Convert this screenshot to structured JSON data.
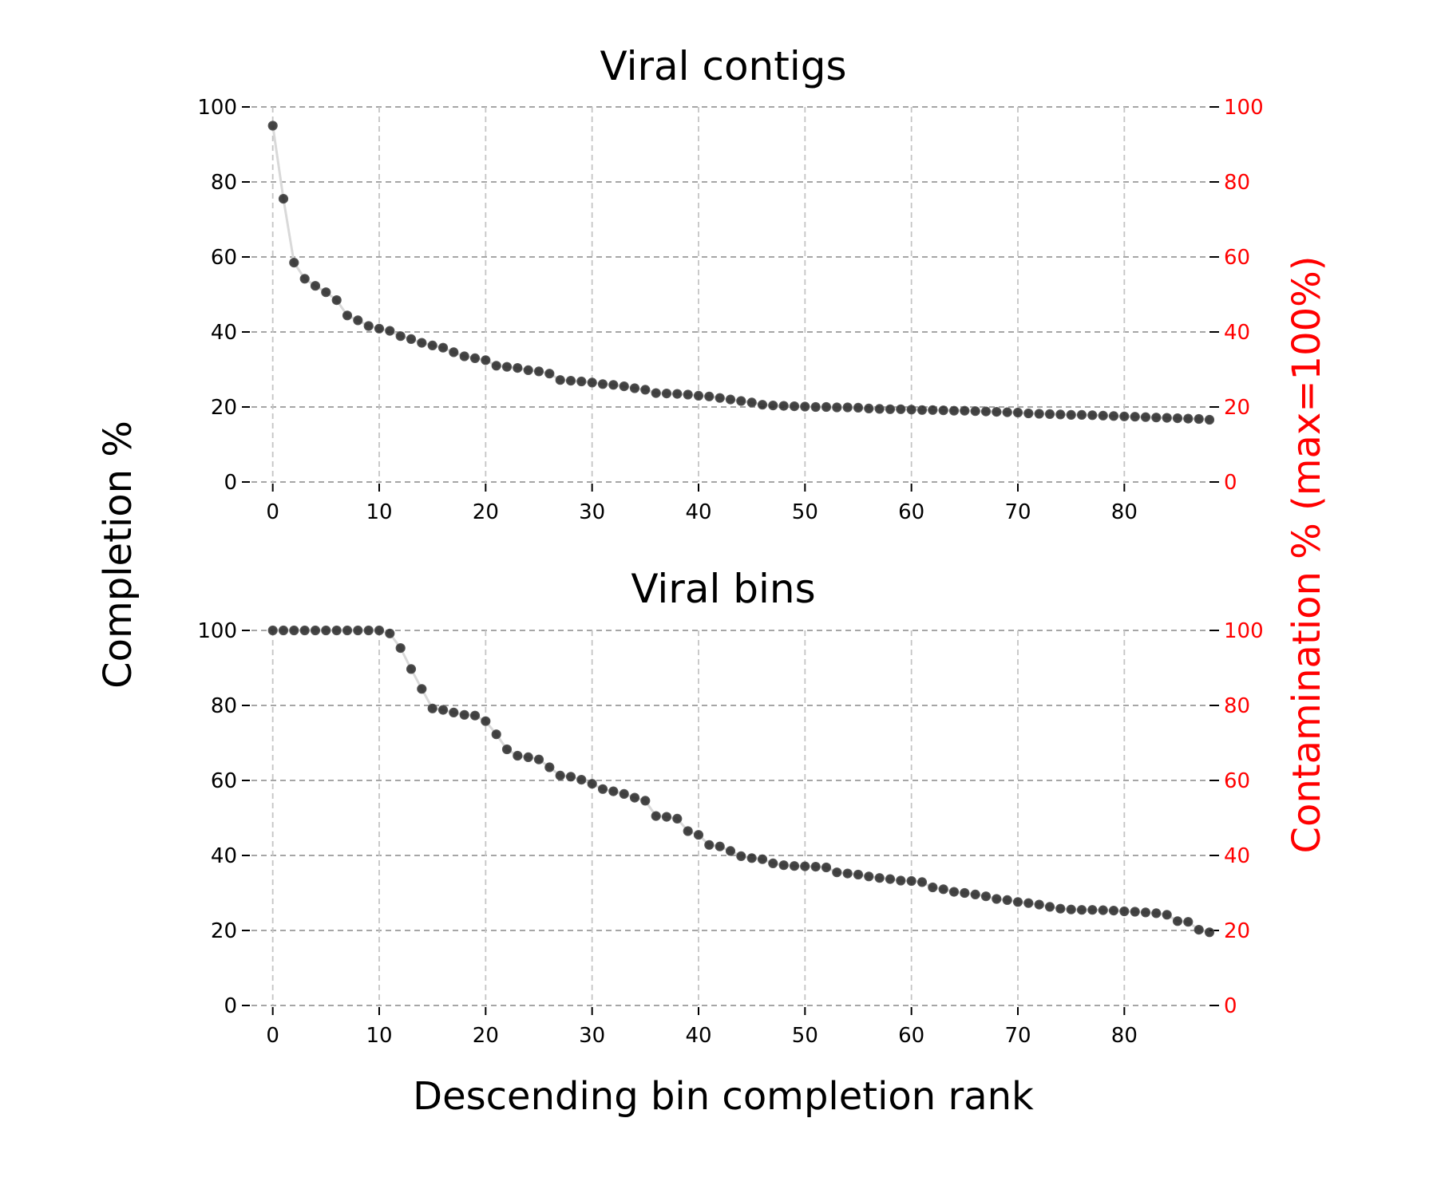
{
  "figure": {
    "ylabel_left": "Completion %",
    "ylabel_right": "Contamination % (max=100%)",
    "xlabel": "Descending bin completion rank",
    "right_axis_color": "#ff0000",
    "point_color": "#222222",
    "line_color": "#d9d9d9",
    "grid": true
  },
  "chart_data": [
    {
      "type": "line",
      "title": "Viral contigs",
      "xlim": [
        -2,
        88
      ],
      "ylim": [
        0,
        100
      ],
      "xticks": [
        "0",
        "10",
        "20",
        "30",
        "40",
        "50",
        "60",
        "70",
        "80"
      ],
      "yticks_left": [
        "0",
        "20",
        "40",
        "60",
        "80",
        "100"
      ],
      "yticks_right": [
        "0",
        "20",
        "40",
        "60",
        "80",
        "100"
      ],
      "series": [
        {
          "x_start": 0,
          "values": [
            95,
            75.5,
            58.5,
            54.2,
            52.3,
            50.6,
            48.5,
            44.4,
            43.1,
            41.6,
            40.9,
            40.3,
            38.9,
            38.1,
            37.1,
            36.4,
            35.8,
            34.6,
            33.5,
            33.0,
            32.5,
            31.0,
            30.7,
            30.4,
            29.8,
            29.5,
            28.9,
            27.2,
            27.0,
            26.8,
            26.5,
            26.1,
            25.9,
            25.5,
            25.0,
            24.6,
            23.7,
            23.6,
            23.5,
            23.3,
            23.0,
            22.8,
            22.4,
            22.0,
            21.6,
            21.2,
            20.6,
            20.4,
            20.3,
            20.2,
            20.1,
            20.0,
            20.0,
            19.9,
            19.9,
            19.8,
            19.6,
            19.5,
            19.4,
            19.4,
            19.3,
            19.2,
            19.2,
            19.1,
            19.0,
            19.0,
            18.9,
            18.8,
            18.7,
            18.6,
            18.5,
            18.3,
            18.2,
            18.1,
            18.0,
            17.9,
            17.9,
            17.8,
            17.7,
            17.6,
            17.5,
            17.4,
            17.3,
            17.2,
            17.1,
            17.0,
            16.9,
            16.8,
            16.6
          ]
        }
      ]
    },
    {
      "type": "line",
      "title": "Viral bins",
      "xlim": [
        -2,
        88
      ],
      "ylim": [
        0,
        100
      ],
      "xticks": [
        "0",
        "10",
        "20",
        "30",
        "40",
        "50",
        "60",
        "70",
        "80"
      ],
      "yticks_left": [
        "0",
        "20",
        "40",
        "60",
        "80",
        "100"
      ],
      "yticks_right": [
        "0",
        "20",
        "40",
        "60",
        "80",
        "100"
      ],
      "series": [
        {
          "x_start": 0,
          "values": [
            100,
            100,
            100,
            100,
            100,
            100,
            100,
            100,
            100,
            100,
            100,
            99.2,
            95.3,
            89.7,
            84.4,
            79.2,
            78.8,
            78.1,
            77.5,
            77.3,
            75.8,
            72.3,
            68.3,
            66.6,
            66.2,
            65.6,
            63.5,
            61.3,
            61.0,
            60.2,
            59.1,
            57.7,
            57.1,
            56.4,
            55.4,
            54.6,
            50.5,
            50.3,
            49.8,
            46.5,
            45.5,
            42.8,
            42.4,
            41.2,
            39.8,
            39.3,
            39.0,
            37.9,
            37.4,
            37.2,
            37.1,
            37.0,
            36.8,
            35.5,
            35.2,
            34.9,
            34.4,
            34.0,
            33.7,
            33.3,
            33.2,
            32.9,
            31.5,
            31.0,
            30.3,
            30.0,
            29.6,
            29.1,
            28.4,
            28.1,
            27.6,
            27.3,
            26.9,
            26.3,
            25.8,
            25.6,
            25.5,
            25.5,
            25.4,
            25.3,
            25.1,
            25.0,
            24.8,
            24.6,
            24.2,
            22.5,
            22.3,
            20.2,
            19.5
          ]
        }
      ]
    }
  ]
}
